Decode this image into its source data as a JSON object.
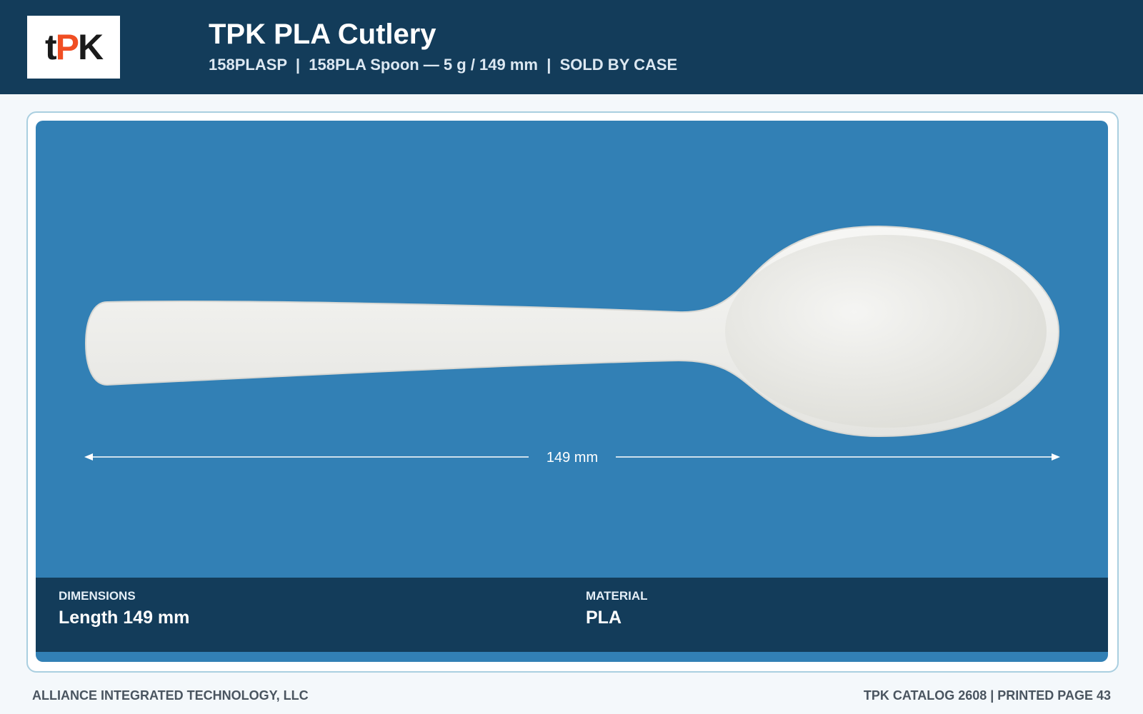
{
  "header": {
    "logo": [
      "t",
      "P",
      "K"
    ],
    "title": "TPK PLA Cutlery",
    "subtitle": "158PLASP  |  158PLA Spoon — 5 g / 149 mm  |  SOLD BY CASE"
  },
  "product": {
    "dimension_label": "149 mm",
    "specs": [
      {
        "label": "DIMENSIONS",
        "value": "Length 149 mm"
      },
      {
        "label": "MATERIAL",
        "value": "PLA"
      }
    ]
  },
  "footer": {
    "left": "ALLIANCE INTEGRATED TECHNOLOGY, LLC",
    "right": "TPK CATALOG 2608 | PRINTED PAGE 43"
  }
}
